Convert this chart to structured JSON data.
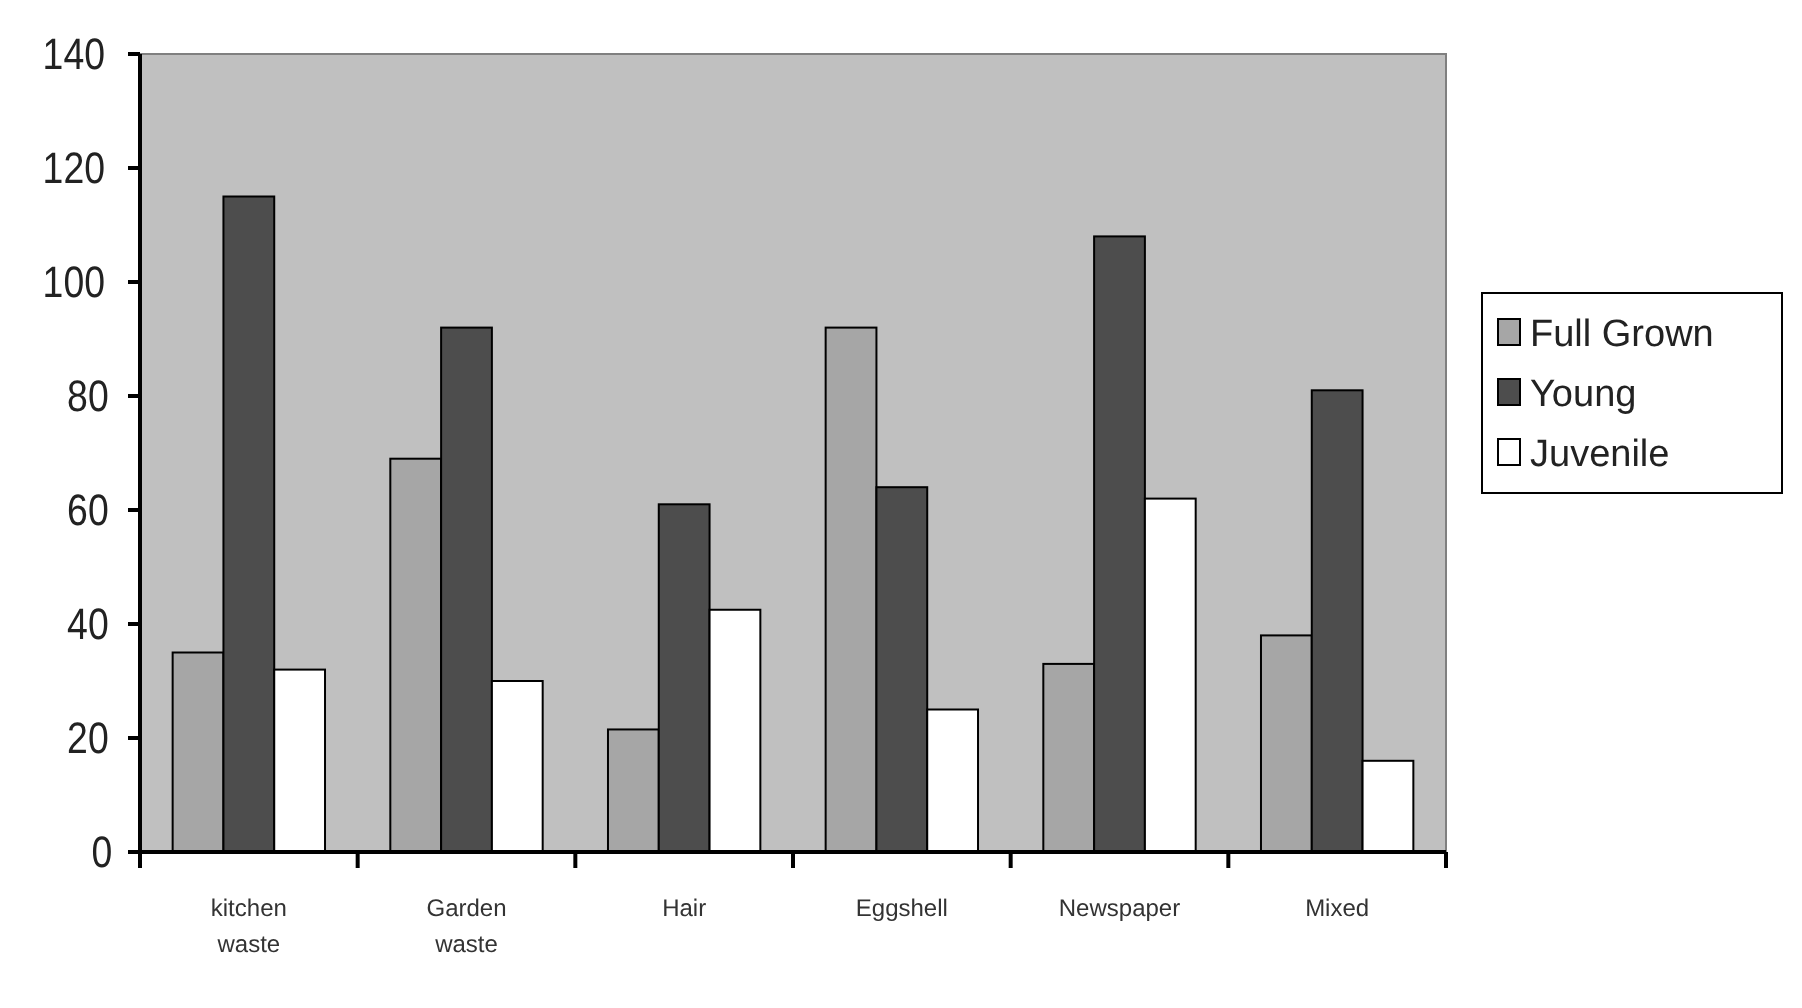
{
  "chart_data": {
    "type": "bar",
    "categories": [
      "kitchen waste",
      "Garden waste",
      "Hair",
      "Eggshell",
      "Newspaper",
      "Mixed"
    ],
    "series": [
      {
        "name": "Full Grown",
        "color": "#a6a6a6",
        "values": [
          35,
          69,
          21.5,
          92,
          33,
          38
        ]
      },
      {
        "name": "Young",
        "color": "#4d4d4d",
        "values": [
          115,
          92,
          61,
          64,
          108,
          81
        ]
      },
      {
        "name": "Juvenile",
        "color": "#ffffff",
        "values": [
          32,
          30,
          42.5,
          25,
          62,
          16
        ]
      }
    ],
    "ylim": [
      0,
      140
    ],
    "yticks": [
      0,
      20,
      40,
      60,
      80,
      100,
      120,
      140
    ],
    "grid": false,
    "legend": "right"
  }
}
